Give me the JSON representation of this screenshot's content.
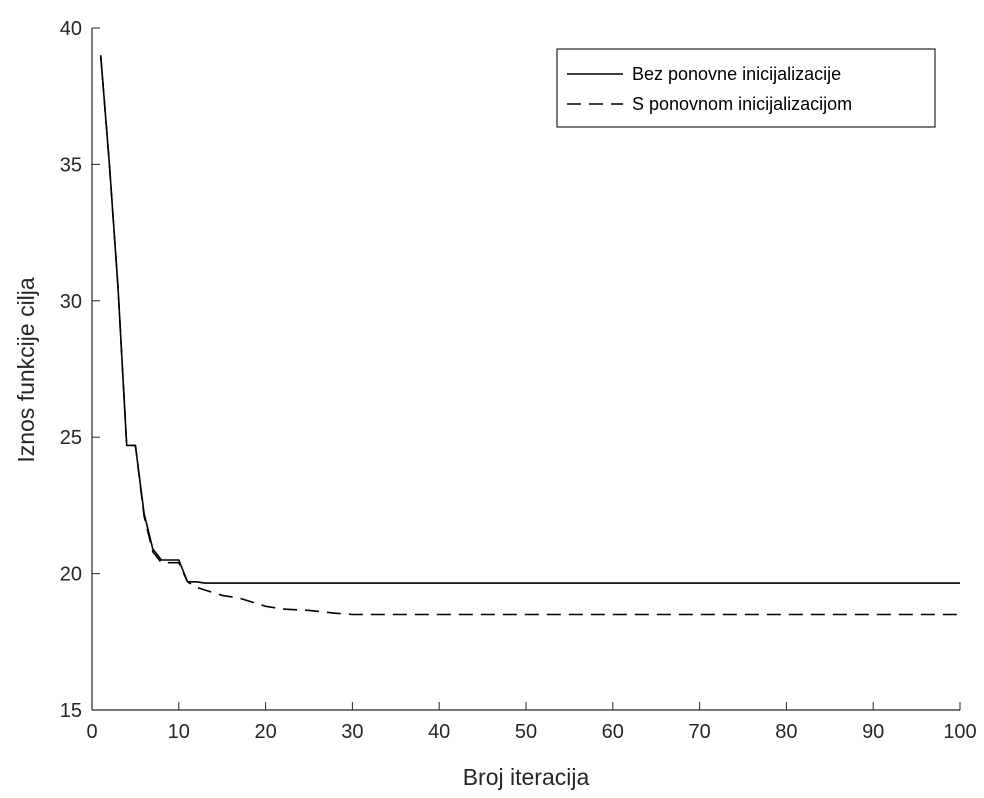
{
  "chart_data": {
    "type": "line",
    "title": "",
    "xlabel": "Broj iteracija",
    "ylabel": "Iznos funkcije cilja",
    "xlim": [
      0,
      100
    ],
    "ylim": [
      15,
      40
    ],
    "xticks": [
      0,
      10,
      20,
      30,
      40,
      50,
      60,
      70,
      80,
      90,
      100
    ],
    "yticks": [
      15,
      20,
      25,
      30,
      35,
      40
    ],
    "grid": false,
    "legend_position": "top-right",
    "series": [
      {
        "name": "Bez ponovne inicijalizacije",
        "style": "solid",
        "color": "#000000",
        "x": [
          1,
          2,
          3,
          4,
          5,
          6,
          7,
          8,
          9,
          10,
          11,
          12,
          13,
          14,
          15,
          20,
          30,
          40,
          50,
          60,
          70,
          80,
          90,
          100
        ],
        "y": [
          39.0,
          35.0,
          30.5,
          24.7,
          24.7,
          22.2,
          20.9,
          20.5,
          20.5,
          20.5,
          19.7,
          19.7,
          19.65,
          19.65,
          19.65,
          19.65,
          19.65,
          19.65,
          19.65,
          19.65,
          19.65,
          19.65,
          19.65,
          19.65
        ]
      },
      {
        "name": "S ponovnom inicijalizacijom",
        "style": "dashed",
        "color": "#000000",
        "x": [
          1,
          2,
          3,
          4,
          5,
          6,
          7,
          8,
          9,
          10,
          11,
          12,
          13,
          14,
          15,
          16,
          17,
          18,
          19,
          20,
          22,
          25,
          28,
          30,
          35,
          40,
          50,
          60,
          70,
          80,
          90,
          100
        ],
        "y": [
          39.0,
          35.0,
          30.5,
          24.7,
          24.7,
          22.1,
          20.8,
          20.4,
          20.4,
          20.4,
          19.7,
          19.5,
          19.4,
          19.3,
          19.2,
          19.15,
          19.1,
          19.0,
          18.9,
          18.8,
          18.7,
          18.65,
          18.55,
          18.5,
          18.5,
          18.5,
          18.5,
          18.5,
          18.5,
          18.5,
          18.5,
          18.5
        ]
      }
    ]
  }
}
